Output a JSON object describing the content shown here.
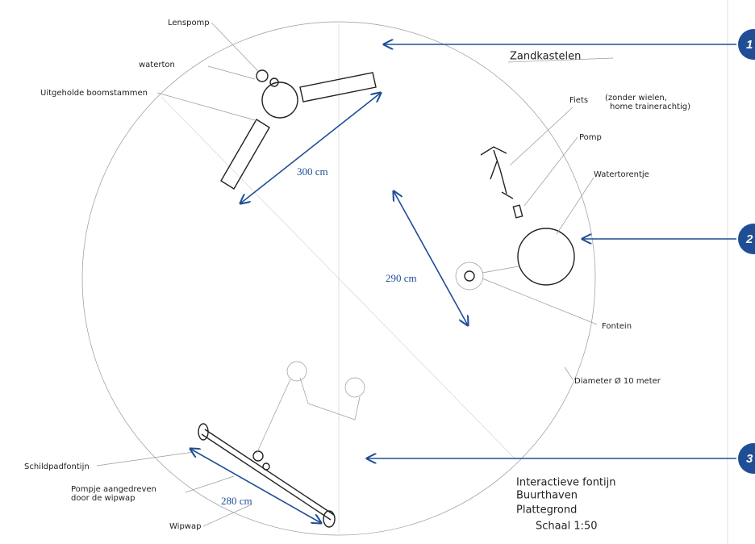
{
  "labels": {
    "lenspomp": "Lenspomp",
    "waterton": "waterton",
    "boomstammen": "Uitgeholde boomstammen",
    "zandkastelen": "Zandkastelen",
    "fiets": "Fiets",
    "fiets_note": [
      "(zonder wielen,",
      "home trainerachtig)"
    ],
    "pomp": "Pomp",
    "watertorentje": "Watertorentje",
    "fontein": "Fontein",
    "diameter": "Diameter Ø 10 meter",
    "schildpadfontijn": "Schildpadfontijn",
    "pompje": [
      "Pompje aangedreven",
      "door de wipwap"
    ],
    "wipwap": "Wipwap"
  },
  "dimensions": [
    "300 cm",
    "290 cm",
    "280 cm"
  ],
  "markers": [
    "1",
    "2",
    "3"
  ],
  "title_block": [
    "Interactieve fontijn",
    "Buurthaven",
    "Plattegrond",
    "Schaal 1:50"
  ]
}
